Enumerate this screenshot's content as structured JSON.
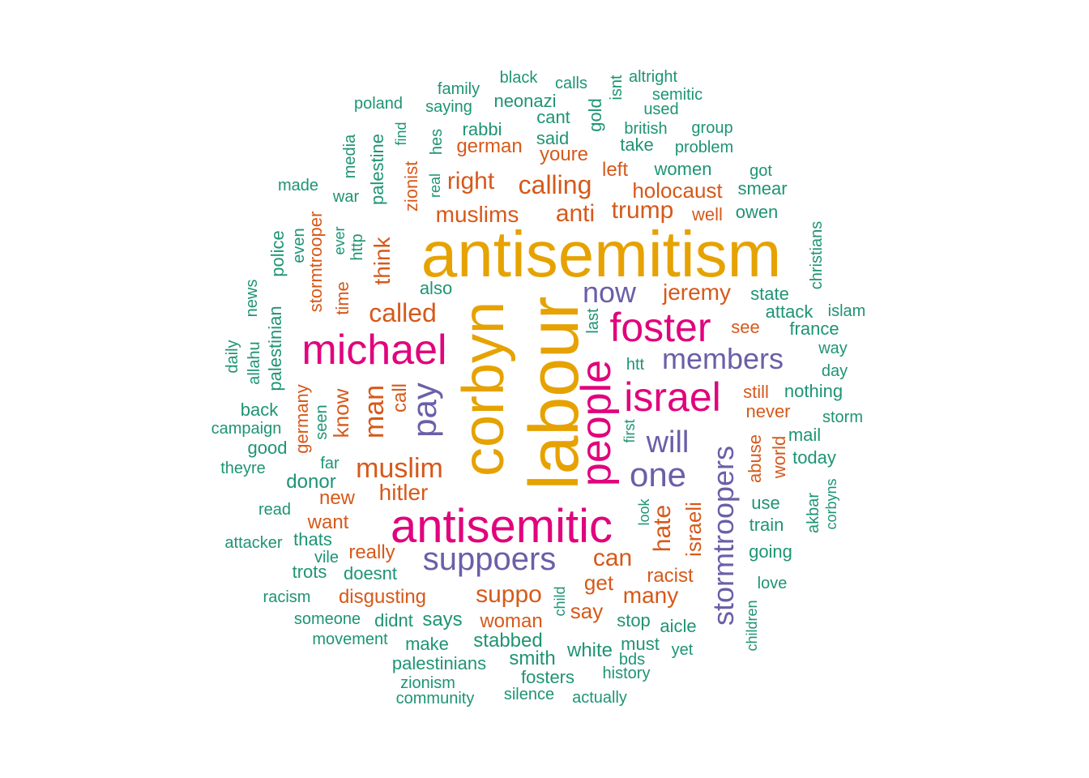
{
  "colors": {
    "gold": "#e6a200",
    "magenta": "#e0047d",
    "purple": "#6a5fa8",
    "orange": "#d6591a",
    "teal": "#1e9474"
  },
  "words": [
    {
      "text": "antisemitism",
      "color": "gold"
    },
    {
      "text": "labour",
      "color": "gold"
    },
    {
      "text": "corbyn",
      "color": "gold"
    },
    {
      "text": "antisemitic",
      "color": "magenta"
    },
    {
      "text": "michael",
      "color": "magenta"
    },
    {
      "text": "foster",
      "color": "magenta"
    },
    {
      "text": "israel",
      "color": "magenta"
    },
    {
      "text": "people",
      "color": "magenta"
    },
    {
      "text": "suppoers",
      "color": "purple"
    },
    {
      "text": "members",
      "color": "purple"
    },
    {
      "text": "now",
      "color": "purple"
    },
    {
      "text": "one",
      "color": "purple"
    },
    {
      "text": "will",
      "color": "purple"
    },
    {
      "text": "pay",
      "color": "purple"
    },
    {
      "text": "stormtroopers",
      "color": "purple"
    },
    {
      "text": "muslim",
      "color": "orange"
    },
    {
      "text": "called",
      "color": "orange"
    },
    {
      "text": "calling",
      "color": "orange"
    },
    {
      "text": "muslims",
      "color": "orange"
    },
    {
      "text": "right",
      "color": "orange"
    },
    {
      "text": "anti",
      "color": "orange"
    },
    {
      "text": "trump",
      "color": "orange"
    },
    {
      "text": "jeremy",
      "color": "orange"
    },
    {
      "text": "holocaust",
      "color": "orange"
    },
    {
      "text": "hitler",
      "color": "orange"
    },
    {
      "text": "man",
      "color": "orange"
    },
    {
      "text": "know",
      "color": "orange"
    },
    {
      "text": "think",
      "color": "orange"
    },
    {
      "text": "can",
      "color": "orange"
    },
    {
      "text": "get",
      "color": "orange"
    },
    {
      "text": "say",
      "color": "orange"
    },
    {
      "text": "many",
      "color": "orange"
    },
    {
      "text": "suppo",
      "color": "orange"
    },
    {
      "text": "hate",
      "color": "orange"
    },
    {
      "text": "israeli",
      "color": "orange"
    },
    {
      "text": "racist",
      "color": "orange"
    },
    {
      "text": "woman",
      "color": "orange"
    },
    {
      "text": "disgusting",
      "color": "orange"
    },
    {
      "text": "really",
      "color": "orange"
    },
    {
      "text": "want",
      "color": "orange"
    },
    {
      "text": "new",
      "color": "orange"
    },
    {
      "text": "german",
      "color": "orange"
    },
    {
      "text": "youre",
      "color": "orange"
    },
    {
      "text": "left",
      "color": "orange"
    },
    {
      "text": "well",
      "color": "orange"
    },
    {
      "text": "see",
      "color": "orange"
    },
    {
      "text": "still",
      "color": "orange"
    },
    {
      "text": "never",
      "color": "orange"
    },
    {
      "text": "abuse",
      "color": "orange"
    },
    {
      "text": "world",
      "color": "orange"
    },
    {
      "text": "call",
      "color": "orange"
    },
    {
      "text": "germany",
      "color": "orange"
    },
    {
      "text": "stormtrooper",
      "color": "orange"
    },
    {
      "text": "time",
      "color": "orange"
    },
    {
      "text": "zionist",
      "color": "orange"
    },
    {
      "text": "women",
      "color": "teal"
    },
    {
      "text": "take",
      "color": "teal"
    },
    {
      "text": "problem",
      "color": "teal"
    },
    {
      "text": "british",
      "color": "teal"
    },
    {
      "text": "group",
      "color": "teal"
    },
    {
      "text": "used",
      "color": "teal"
    },
    {
      "text": "semitic",
      "color": "teal"
    },
    {
      "text": "altright",
      "color": "teal"
    },
    {
      "text": "isnt",
      "color": "teal"
    },
    {
      "text": "gold",
      "color": "teal"
    },
    {
      "text": "calls",
      "color": "teal"
    },
    {
      "text": "black",
      "color": "teal"
    },
    {
      "text": "family",
      "color": "teal"
    },
    {
      "text": "neonazi",
      "color": "teal"
    },
    {
      "text": "cant",
      "color": "teal"
    },
    {
      "text": "said",
      "color": "teal"
    },
    {
      "text": "rabbi",
      "color": "teal"
    },
    {
      "text": "saying",
      "color": "teal"
    },
    {
      "text": "poland",
      "color": "teal"
    },
    {
      "text": "hes",
      "color": "teal"
    },
    {
      "text": "real",
      "color": "teal"
    },
    {
      "text": "find",
      "color": "teal"
    },
    {
      "text": "palestine",
      "color": "teal"
    },
    {
      "text": "media",
      "color": "teal"
    },
    {
      "text": "made",
      "color": "teal"
    },
    {
      "text": "war",
      "color": "teal"
    },
    {
      "text": "got",
      "color": "teal"
    },
    {
      "text": "smear",
      "color": "teal"
    },
    {
      "text": "owen",
      "color": "teal"
    },
    {
      "text": "christians",
      "color": "teal"
    },
    {
      "text": "state",
      "color": "teal"
    },
    {
      "text": "attack",
      "color": "teal"
    },
    {
      "text": "islam",
      "color": "teal"
    },
    {
      "text": "france",
      "color": "teal"
    },
    {
      "text": "way",
      "color": "teal"
    },
    {
      "text": "day",
      "color": "teal"
    },
    {
      "text": "nothing",
      "color": "teal"
    },
    {
      "text": "storm",
      "color": "teal"
    },
    {
      "text": "mail",
      "color": "teal"
    },
    {
      "text": "today",
      "color": "teal"
    },
    {
      "text": "akbar",
      "color": "teal"
    },
    {
      "text": "corbyns",
      "color": "teal"
    },
    {
      "text": "use",
      "color": "teal"
    },
    {
      "text": "train",
      "color": "teal"
    },
    {
      "text": "going",
      "color": "teal"
    },
    {
      "text": "love",
      "color": "teal"
    },
    {
      "text": "children",
      "color": "teal"
    },
    {
      "text": "aicle",
      "color": "teal"
    },
    {
      "text": "yet",
      "color": "teal"
    },
    {
      "text": "stop",
      "color": "teal"
    },
    {
      "text": "must",
      "color": "teal"
    },
    {
      "text": "bds",
      "color": "teal"
    },
    {
      "text": "history",
      "color": "teal"
    },
    {
      "text": "white",
      "color": "teal"
    },
    {
      "text": "actually",
      "color": "teal"
    },
    {
      "text": "silence",
      "color": "teal"
    },
    {
      "text": "fosters",
      "color": "teal"
    },
    {
      "text": "smith",
      "color": "teal"
    },
    {
      "text": "stabbed",
      "color": "teal"
    },
    {
      "text": "make",
      "color": "teal"
    },
    {
      "text": "palestinians",
      "color": "teal"
    },
    {
      "text": "zionism",
      "color": "teal"
    },
    {
      "text": "community",
      "color": "teal"
    },
    {
      "text": "movement",
      "color": "teal"
    },
    {
      "text": "someone",
      "color": "teal"
    },
    {
      "text": "didnt",
      "color": "teal"
    },
    {
      "text": "says",
      "color": "teal"
    },
    {
      "text": "racism",
      "color": "teal"
    },
    {
      "text": "trots",
      "color": "teal"
    },
    {
      "text": "doesnt",
      "color": "teal"
    },
    {
      "text": "vile",
      "color": "teal"
    },
    {
      "text": "thats",
      "color": "teal"
    },
    {
      "text": "attacker",
      "color": "teal"
    },
    {
      "text": "read",
      "color": "teal"
    },
    {
      "text": "theyre",
      "color": "teal"
    },
    {
      "text": "good",
      "color": "teal"
    },
    {
      "text": "campaign",
      "color": "teal"
    },
    {
      "text": "back",
      "color": "teal"
    },
    {
      "text": "daily",
      "color": "teal"
    },
    {
      "text": "allahu",
      "color": "teal"
    },
    {
      "text": "news",
      "color": "teal"
    },
    {
      "text": "palestinian",
      "color": "teal"
    },
    {
      "text": "police",
      "color": "teal"
    },
    {
      "text": "even",
      "color": "teal"
    },
    {
      "text": "http",
      "color": "teal"
    },
    {
      "text": "ever",
      "color": "teal"
    },
    {
      "text": "donor",
      "color": "teal"
    },
    {
      "text": "far",
      "color": "teal"
    },
    {
      "text": "seen",
      "color": "teal"
    },
    {
      "text": "also",
      "color": "teal"
    },
    {
      "text": "htt",
      "color": "teal"
    },
    {
      "text": "last",
      "color": "teal"
    },
    {
      "text": "first",
      "color": "teal"
    },
    {
      "text": "look",
      "color": "teal"
    },
    {
      "text": "child",
      "color": "teal"
    }
  ]
}
